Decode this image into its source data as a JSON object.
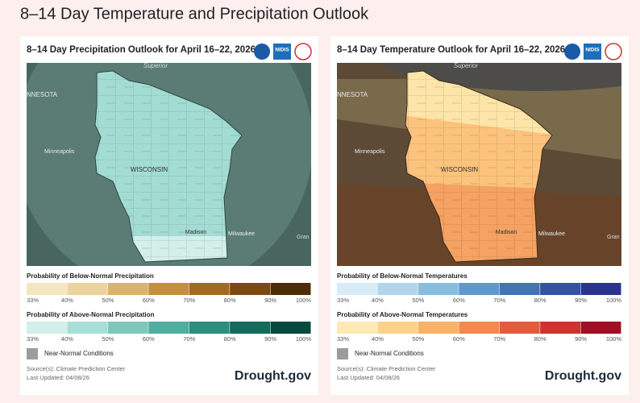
{
  "title": "8–14 Day Temperature and Precipitation Outlook",
  "panels": [
    {
      "title": "8–14 Day Precipitation Outlook for April 16–22, 2026",
      "logo_text": "NIDIS",
      "map_labels": [
        "Superior",
        "NNESOTA",
        "Minneapolis",
        "WISCONSIN",
        "Madison",
        "Milwaukee",
        "Gran"
      ],
      "legends": [
        {
          "title": "Probability of Below-Normal Precipitation",
          "colors": [
            "#f5e6c2",
            "#ebd3a0",
            "#d9b46a",
            "#c4903e",
            "#a36a1f",
            "#7a4a10",
            "#4e2c06"
          ],
          "labels": [
            "33%",
            "40%",
            "50%",
            "60%",
            "70%",
            "80%",
            "90%",
            "100%"
          ]
        },
        {
          "title": "Probability of Above-Normal Precipitation",
          "colors": [
            "#d2efe9",
            "#a5dfd5",
            "#7cc9bc",
            "#4faf9f",
            "#2c8e7d",
            "#136b5b",
            "#064a3d"
          ],
          "labels": [
            "33%",
            "40%",
            "50%",
            "60%",
            "70%",
            "80%",
            "90%",
            "100%"
          ]
        }
      ],
      "near_normal": "Near-Normal Conditions",
      "source": "Source(s): Climate Prediction Center",
      "updated": "Last Updated: 04/08/26",
      "brand": "Drought.gov"
    },
    {
      "title": "8–14 Day Temperature Outlook for April 16–22, 2026",
      "logo_text": "NIDIS",
      "map_labels": [
        "Superior",
        "NNESOTA",
        "Minneapolis",
        "WISCONSIN",
        "Madison",
        "Milwaukee",
        "Gran"
      ],
      "legends": [
        {
          "title": "Probability of Below-Normal Temperatures",
          "colors": [
            "#d6ecf7",
            "#b1d6ec",
            "#89bde0",
            "#5f98cc",
            "#4474b6",
            "#3553a3",
            "#2a3490"
          ],
          "labels": [
            "33%",
            "40%",
            "50%",
            "60%",
            "70%",
            "80%",
            "90%",
            "100%"
          ]
        },
        {
          "title": "Probability of Above-Normal Temperatures",
          "colors": [
            "#fde8b6",
            "#fcd28a",
            "#f9b266",
            "#f28a4f",
            "#e35d3c",
            "#cd3430",
            "#a10f26"
          ],
          "labels": [
            "33%",
            "40%",
            "50%",
            "60%",
            "70%",
            "80%",
            "90%",
            "100%"
          ]
        }
      ],
      "near_normal": "Near-Normal Conditions",
      "source": "Source(s): Climate Prediction Center",
      "updated": "Last Updated: 04/08/26",
      "brand": "Drought.gov"
    }
  ]
}
